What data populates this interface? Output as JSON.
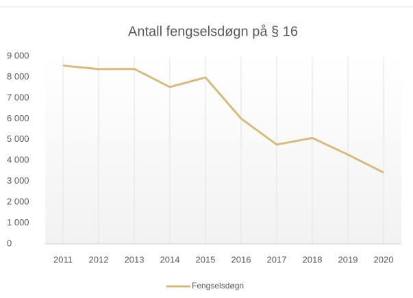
{
  "chart_data": {
    "type": "line",
    "title": "Antall fengselsdøgn på § 16",
    "categories": [
      "2011",
      "2012",
      "2013",
      "2014",
      "2015",
      "2016",
      "2017",
      "2018",
      "2019",
      "2020"
    ],
    "series": [
      {
        "name": "Fengselsdøgn",
        "color": "#d6bb7c",
        "values": [
          8550,
          8380,
          8390,
          7520,
          7980,
          6010,
          4760,
          5080,
          4280,
          3420
        ]
      }
    ],
    "ylim": [
      0,
      9000
    ],
    "yticks": [
      0,
      {
        "value": 1000,
        "label": "1 000"
      },
      {
        "value": 2000,
        "label": "2 000"
      },
      {
        "value": 3000,
        "label": "3 000"
      },
      {
        "value": 4000,
        "label": "4 000"
      },
      {
        "value": 5000,
        "label": "5 000"
      },
      {
        "value": 6000,
        "label": "6 000"
      },
      {
        "value": 7000,
        "label": "7 000"
      },
      {
        "value": 8000,
        "label": "8 000"
      },
      {
        "value": 9000,
        "label": "9 000"
      }
    ],
    "legend": "bottom"
  }
}
